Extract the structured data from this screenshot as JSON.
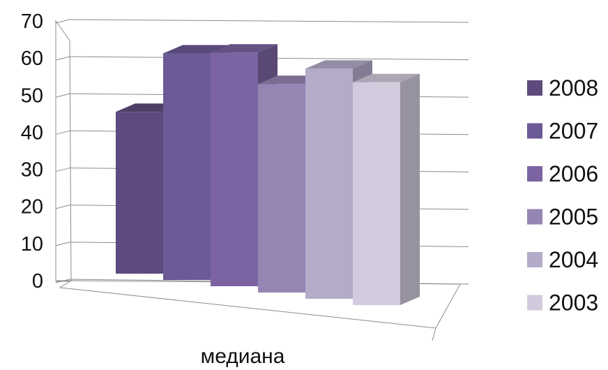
{
  "chart_data": {
    "type": "bar",
    "categories": [
      "медиана"
    ],
    "series": [
      {
        "name": "2008",
        "values": [
          45
        ],
        "color": "#5e4a7e"
      },
      {
        "name": "2007",
        "values": [
          63
        ],
        "color": "#6b5a95"
      },
      {
        "name": "2006",
        "values": [
          65
        ],
        "color": "#7b64a1"
      },
      {
        "name": "2005",
        "values": [
          58
        ],
        "color": "#9585b3"
      },
      {
        "name": "2004",
        "values": [
          64
        ],
        "color": "#b4abc9"
      },
      {
        "name": "2003",
        "values": [
          62
        ],
        "color": "#d2cbdd"
      }
    ],
    "ylim": [
      0,
      70
    ],
    "yticks": [
      "0",
      "10",
      "20",
      "30",
      "40",
      "50",
      "60",
      "70"
    ],
    "grid": true,
    "legend": "right",
    "style": "3d-clustered-column"
  }
}
